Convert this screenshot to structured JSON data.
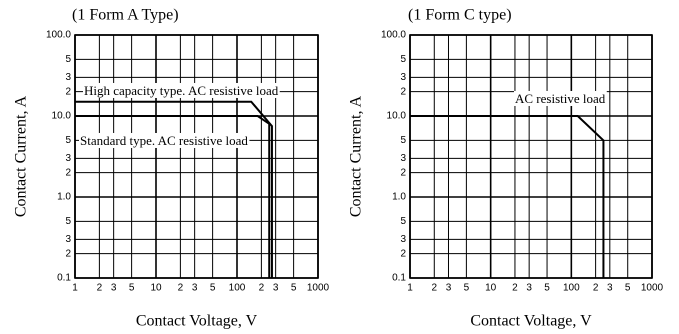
{
  "chart_data": [
    {
      "type": "line",
      "subtitle": "(1 Form A Type)",
      "xlabel": "Contact Voltage, V",
      "ylabel": "Contact Current, A",
      "xlog": true,
      "ylog": true,
      "grid": true,
      "xlim": [
        1,
        1000
      ],
      "ylim": [
        0.1,
        100
      ],
      "xticks": [
        1,
        2,
        3,
        5,
        10,
        {
          "value": 20,
          "label": "2"
        },
        {
          "value": 30,
          "label": "3"
        },
        {
          "value": 50,
          "label": "5"
        },
        100,
        {
          "value": 200,
          "label": "2"
        },
        {
          "value": 300,
          "label": "3"
        },
        {
          "value": 500,
          "label": "5"
        },
        1000
      ],
      "yticks": [
        {
          "value": 100,
          "label": "100.0"
        },
        {
          "value": 50,
          "label": "5"
        },
        {
          "value": 30,
          "label": "3"
        },
        {
          "value": 20,
          "label": "2"
        },
        {
          "value": 10,
          "label": "10.0"
        },
        {
          "value": 5,
          "label": "5"
        },
        {
          "value": 3,
          "label": "3"
        },
        {
          "value": 2,
          "label": "2"
        },
        {
          "value": 1,
          "label": "1.0"
        },
        {
          "value": 0.5,
          "label": "5"
        },
        {
          "value": 0.3,
          "label": "3"
        },
        {
          "value": 0.2,
          "label": "2"
        },
        0.1
      ],
      "series": [
        {
          "name": "High capacity type. AC resistive load",
          "color": "#000000",
          "x": [
            1,
            150,
            270,
            270
          ],
          "values": [
            15,
            15,
            7.5,
            0.1
          ]
        },
        {
          "name": "Standard type. AC resistive load",
          "color": "#000000",
          "x": [
            1,
            180,
            250,
            250
          ],
          "values": [
            10,
            10,
            8,
            0.1
          ]
        }
      ]
    },
    {
      "type": "line",
      "subtitle": "(1 Form C type)",
      "xlabel": "Contact Voltage, V",
      "ylabel": "Contact Current, A",
      "xlog": true,
      "ylog": true,
      "grid": true,
      "xlim": [
        1,
        1000
      ],
      "ylim": [
        0.1,
        100
      ],
      "xticks": [
        1,
        2,
        3,
        5,
        10,
        {
          "value": 20,
          "label": "2"
        },
        {
          "value": 30,
          "label": "3"
        },
        {
          "value": 50,
          "label": "5"
        },
        100,
        {
          "value": 200,
          "label": "2"
        },
        {
          "value": 300,
          "label": "3"
        },
        {
          "value": 500,
          "label": "5"
        },
        1000
      ],
      "yticks": [
        {
          "value": 100,
          "label": "100.0"
        },
        {
          "value": 50,
          "label": "5"
        },
        {
          "value": 30,
          "label": "3"
        },
        {
          "value": 20,
          "label": "2"
        },
        {
          "value": 10,
          "label": "10.0"
        },
        {
          "value": 5,
          "label": "5"
        },
        {
          "value": 3,
          "label": "3"
        },
        {
          "value": 2,
          "label": "2"
        },
        {
          "value": 1,
          "label": "1.0"
        },
        {
          "value": 0.5,
          "label": "5"
        },
        {
          "value": 0.3,
          "label": "3"
        },
        {
          "value": 0.2,
          "label": "2"
        },
        0.1
      ],
      "series": [
        {
          "name": "AC resistive load",
          "color": "#000000",
          "x": [
            1,
            120,
            250,
            250
          ],
          "values": [
            10,
            10,
            5,
            0.1
          ]
        }
      ]
    }
  ]
}
